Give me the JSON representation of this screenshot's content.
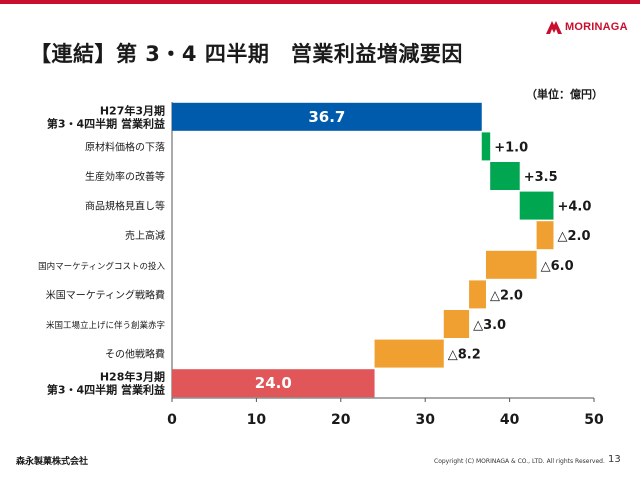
{
  "brand": {
    "name": "MORINAGA",
    "color": "#c8102e"
  },
  "slide_title": "【連結】第 3・4 四半期　営業利益増減要因",
  "unit_label": "（単位：億円）",
  "footer": {
    "company": "森永製菓株式会社",
    "copyright": "Copyright (C) MORINAGA & CO., LTD. All rights Reserved.",
    "page_number": "13"
  },
  "chart_data": {
    "type": "bar",
    "subtype": "waterfall",
    "orientation": "horizontal",
    "title": "【連結】第 3・4 四半期　営業利益増減要因",
    "xlabel": "",
    "ylabel": "",
    "unit": "億円",
    "xlim": [
      0,
      50
    ],
    "xticks": [
      0,
      10,
      20,
      30,
      40,
      50
    ],
    "grid": false,
    "colors": {
      "total_start": "#005bac",
      "total_end": "#e15759",
      "increase": "#00a650",
      "decrease": "#f0a030"
    },
    "categories": [
      [
        "H27年3月期",
        "第3・4四半期 営業利益"
      ],
      [
        "原材料価格の下落"
      ],
      [
        "生産効率の改善等"
      ],
      [
        "商品規格見直し等"
      ],
      [
        "売上高減"
      ],
      [
        "国内マーケティングコストの投入"
      ],
      [
        "米国マーケティング戦略費"
      ],
      [
        "米国工場立上げに伴う創業赤字"
      ],
      [
        "その他戦略費"
      ],
      [
        "H28年3月期",
        "第3・4四半期 営業利益"
      ]
    ],
    "values": [
      36.7,
      1.0,
      3.5,
      4.0,
      -2.0,
      -6.0,
      -2.0,
      -3.0,
      -8.2,
      24.0
    ],
    "kinds": [
      "total_start",
      "increase",
      "increase",
      "increase",
      "decrease",
      "decrease",
      "decrease",
      "decrease",
      "decrease",
      "total_end"
    ],
    "data_labels": [
      "36.7",
      "+1.0",
      "+3.5",
      "+4.0",
      "△2.0",
      "△6.0",
      "△2.0",
      "△3.0",
      "△8.2",
      "24.0"
    ]
  }
}
